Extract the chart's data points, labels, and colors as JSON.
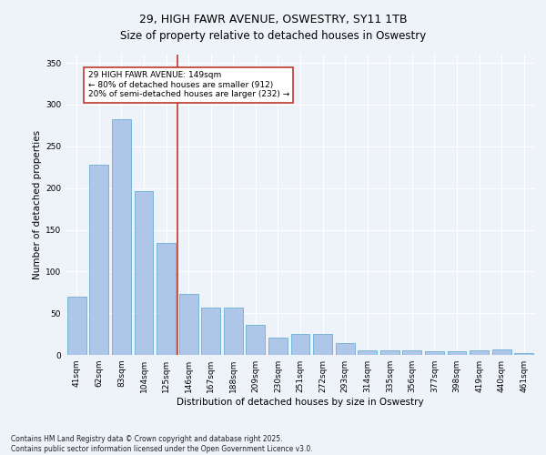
{
  "title": "29, HIGH FAWR AVENUE, OSWESTRY, SY11 1TB",
  "subtitle": "Size of property relative to detached houses in Oswestry",
  "xlabel": "Distribution of detached houses by size in Oswestry",
  "ylabel": "Number of detached properties",
  "categories": [
    "41sqm",
    "62sqm",
    "83sqm",
    "104sqm",
    "125sqm",
    "146sqm",
    "167sqm",
    "188sqm",
    "209sqm",
    "230sqm",
    "251sqm",
    "272sqm",
    "293sqm",
    "314sqm",
    "335sqm",
    "356sqm",
    "377sqm",
    "398sqm",
    "419sqm",
    "440sqm",
    "461sqm"
  ],
  "values": [
    70,
    228,
    283,
    196,
    134,
    73,
    57,
    57,
    36,
    21,
    25,
    25,
    14,
    6,
    6,
    5,
    4,
    4,
    6,
    7,
    2
  ],
  "bar_color": "#aec6e8",
  "bar_edge_color": "#6baed6",
  "vline_x": 4.5,
  "vline_color": "#c0392b",
  "annotation_text": "29 HIGH FAWR AVENUE: 149sqm\n← 80% of detached houses are smaller (912)\n20% of semi-detached houses are larger (232) →",
  "annotation_box_color": "#ffffff",
  "annotation_box_edgecolor": "#c0392b",
  "ylim": [
    0,
    360
  ],
  "yticks": [
    0,
    50,
    100,
    150,
    200,
    250,
    300,
    350
  ],
  "footer": "Contains HM Land Registry data © Crown copyright and database right 2025.\nContains public sector information licensed under the Open Government Licence v3.0.",
  "title_fontsize": 9,
  "axis_label_fontsize": 7.5,
  "tick_fontsize": 6.5,
  "annotation_fontsize": 6.5,
  "footer_fontsize": 5.5,
  "background_color": "#eef2f9",
  "plot_bg_color": "#eef2f9",
  "fig_width": 6.0,
  "fig_height": 5.0,
  "fig_dpi": 100
}
